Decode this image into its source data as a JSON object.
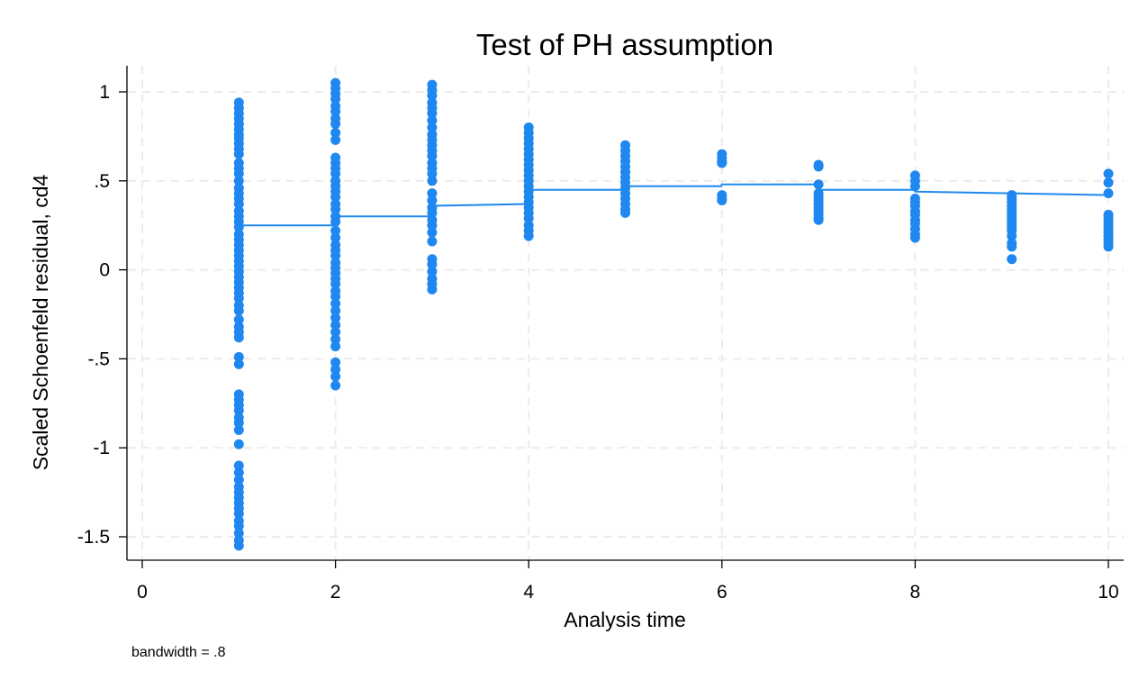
{
  "chart_data": {
    "type": "scatter",
    "title": "Test of PH assumption",
    "xlabel": "Analysis time",
    "ylabel": "Scaled Schoenfeld residual, cd4",
    "note": "bandwidth = .8",
    "xlim": [
      0,
      10
    ],
    "ylim": [
      -1.5,
      1
    ],
    "x_ticks": [
      0,
      2,
      4,
      6,
      8,
      10
    ],
    "x_tick_labels": [
      "0",
      "2",
      "4",
      "6",
      "8",
      "10"
    ],
    "y_ticks": [
      -1.5,
      -1,
      -0.5,
      0,
      0.5,
      1
    ],
    "y_tick_labels": [
      "-1.5",
      "-1",
      "-.5",
      "0",
      ".5",
      "1"
    ],
    "grid": true,
    "marker_color": "#1e88f0",
    "line_color": "#1e88f0",
    "series": [
      {
        "kind": "points",
        "values": [
          {
            "x": 1,
            "y": [
              0.94,
              0.91,
              0.88,
              0.85,
              0.82,
              0.79,
              0.76,
              0.74,
              0.71,
              0.68,
              0.65,
              0.6,
              0.57,
              0.54,
              0.5,
              0.46,
              0.43,
              0.4,
              0.37,
              0.33,
              0.3,
              0.27,
              0.24,
              0.2,
              0.17,
              0.14,
              0.11,
              0.08,
              0.05,
              0.02,
              -0.01,
              -0.04,
              -0.07,
              -0.1,
              -0.13,
              -0.16,
              -0.2,
              -0.23,
              -0.28,
              -0.32,
              -0.35,
              -0.38,
              -0.49,
              -0.53,
              -0.7,
              -0.73,
              -0.76,
              -0.79,
              -0.83,
              -0.86,
              -0.9,
              -0.98,
              -1.1,
              -1.14,
              -1.18,
              -1.22,
              -1.25,
              -1.28,
              -1.31,
              -1.34,
              -1.37,
              -1.41,
              -1.44,
              -1.48,
              -1.52,
              -1.55
            ]
          },
          {
            "x": 2,
            "y": [
              1.05,
              1.02,
              0.99,
              0.96,
              0.92,
              0.89,
              0.85,
              0.82,
              0.77,
              0.73,
              0.63,
              0.6,
              0.57,
              0.54,
              0.5,
              0.47,
              0.44,
              0.41,
              0.37,
              0.34,
              0.3,
              0.27,
              0.22,
              0.18,
              0.14,
              0.11,
              0.08,
              0.04,
              0.01,
              -0.02,
              -0.05,
              -0.08,
              -0.12,
              -0.15,
              -0.19,
              -0.23,
              -0.27,
              -0.31,
              -0.35,
              -0.39,
              -0.43,
              -0.52,
              -0.56,
              -0.6,
              -0.65
            ]
          },
          {
            "x": 3,
            "y": [
              1.04,
              1.01,
              0.98,
              0.94,
              0.91,
              0.88,
              0.84,
              0.8,
              0.76,
              0.73,
              0.7,
              0.67,
              0.64,
              0.6,
              0.57,
              0.54,
              0.5,
              0.43,
              0.39,
              0.35,
              0.32,
              0.28,
              0.25,
              0.21,
              0.16,
              0.06,
              0.03,
              -0.01,
              -0.05,
              -0.08,
              -0.11
            ]
          },
          {
            "x": 4,
            "y": [
              0.8,
              0.77,
              0.74,
              0.71,
              0.68,
              0.65,
              0.62,
              0.59,
              0.56,
              0.53,
              0.5,
              0.47,
              0.44,
              0.41,
              0.38,
              0.35,
              0.32,
              0.29,
              0.25,
              0.22,
              0.19
            ]
          },
          {
            "x": 5,
            "y": [
              0.7,
              0.67,
              0.64,
              0.61,
              0.58,
              0.55,
              0.52,
              0.49,
              0.46,
              0.43,
              0.4,
              0.37,
              0.34,
              0.32
            ]
          },
          {
            "x": 6,
            "y": [
              0.65,
              0.63,
              0.61,
              0.6,
              0.42,
              0.4,
              0.39
            ]
          },
          {
            "x": 7,
            "y": [
              0.59,
              0.58,
              0.48,
              0.43,
              0.41,
              0.39,
              0.37,
              0.35,
              0.33,
              0.31,
              0.29,
              0.28
            ]
          },
          {
            "x": 8,
            "y": [
              0.53,
              0.5,
              0.47,
              0.4,
              0.38,
              0.36,
              0.33,
              0.31,
              0.28,
              0.26,
              0.23,
              0.2,
              0.18
            ]
          },
          {
            "x": 9,
            "y": [
              0.42,
              0.4,
              0.38,
              0.36,
              0.34,
              0.32,
              0.3,
              0.28,
              0.26,
              0.24,
              0.22,
              0.19,
              0.15,
              0.13,
              0.06
            ]
          },
          {
            "x": 10,
            "y": [
              0.54,
              0.49,
              0.43,
              0.31,
              0.29,
              0.27,
              0.25,
              0.23,
              0.21,
              0.19,
              0.17,
              0.15,
              0.13
            ]
          }
        ]
      },
      {
        "kind": "line",
        "points": [
          {
            "x": 1,
            "y": 0.25
          },
          {
            "x": 1.99,
            "y": 0.25
          },
          {
            "x": 2,
            "y": 0.3
          },
          {
            "x": 2.99,
            "y": 0.3
          },
          {
            "x": 3,
            "y": 0.36
          },
          {
            "x": 3.99,
            "y": 0.37
          },
          {
            "x": 4,
            "y": 0.45
          },
          {
            "x": 4.99,
            "y": 0.45
          },
          {
            "x": 5,
            "y": 0.47
          },
          {
            "x": 5.99,
            "y": 0.47
          },
          {
            "x": 6,
            "y": 0.48
          },
          {
            "x": 6.99,
            "y": 0.48
          },
          {
            "x": 7,
            "y": 0.45
          },
          {
            "x": 7.99,
            "y": 0.45
          },
          {
            "x": 8,
            "y": 0.44
          },
          {
            "x": 8.99,
            "y": 0.43
          },
          {
            "x": 9,
            "y": 0.43
          },
          {
            "x": 10,
            "y": 0.42
          }
        ]
      }
    ]
  }
}
